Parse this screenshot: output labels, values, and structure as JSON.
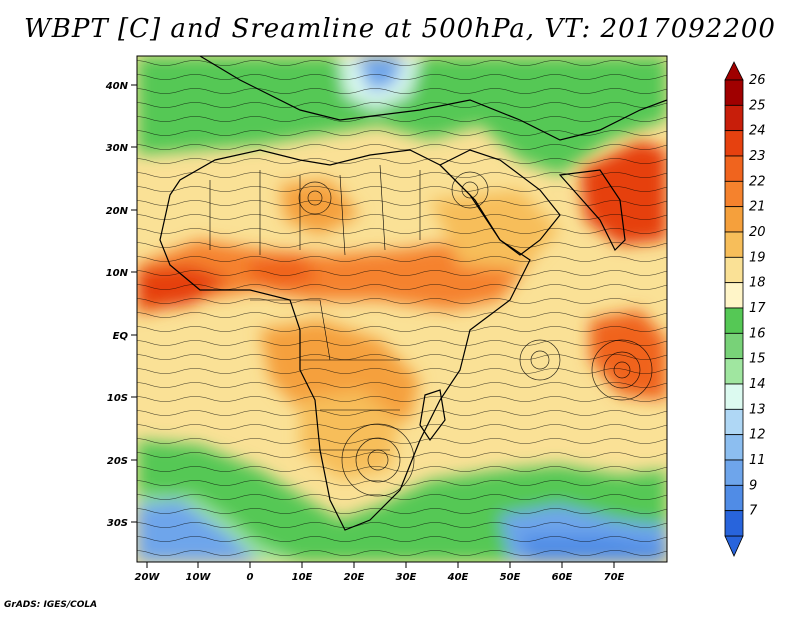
{
  "title": "WBPT [C] and Sreamline at 500hPa, VT: 2017092200",
  "credit": "GrADS: IGES/COLA",
  "map": {
    "lat_labels": [
      "40N",
      "30N",
      "20N",
      "10N",
      "EQ",
      "10S",
      "20S",
      "30S"
    ],
    "lon_labels": [
      "20W",
      "10W",
      "0",
      "10E",
      "20E",
      "30E",
      "40E",
      "50E",
      "60E",
      "70E"
    ],
    "lon_range": [
      -22,
      80
    ],
    "lat_range": [
      -36,
      45
    ]
  },
  "colorbar": {
    "levels": [
      "26",
      "25",
      "24",
      "23",
      "22",
      "21",
      "20",
      "19",
      "18",
      "17",
      "16",
      "15",
      "14",
      "13",
      "12",
      "11",
      "9",
      "7"
    ],
    "colors": [
      "#a00000",
      "#c81e0a",
      "#e6410f",
      "#f0641e",
      "#f5822d",
      "#f5a03c",
      "#f7be5a",
      "#fae196",
      "#fff5c8",
      "#55c855",
      "#78d278",
      "#a0e6a0",
      "#dcfaf0",
      "#afd7f5",
      "#8cbef0",
      "#6ea5eb",
      "#508ce6",
      "#2864dc"
    ]
  },
  "palette": {
    "hot": "#e6410f",
    "warm": "#f5822d",
    "mild": "#f5a03c",
    "warmpale": "#f7be5a",
    "neutral": "#fae196",
    "green": "#55c855",
    "lightgreen": "#a0e6a0",
    "cyan": "#dcfaf0",
    "blue": "#6ea5eb",
    "deepblue": "#508ce6"
  }
}
